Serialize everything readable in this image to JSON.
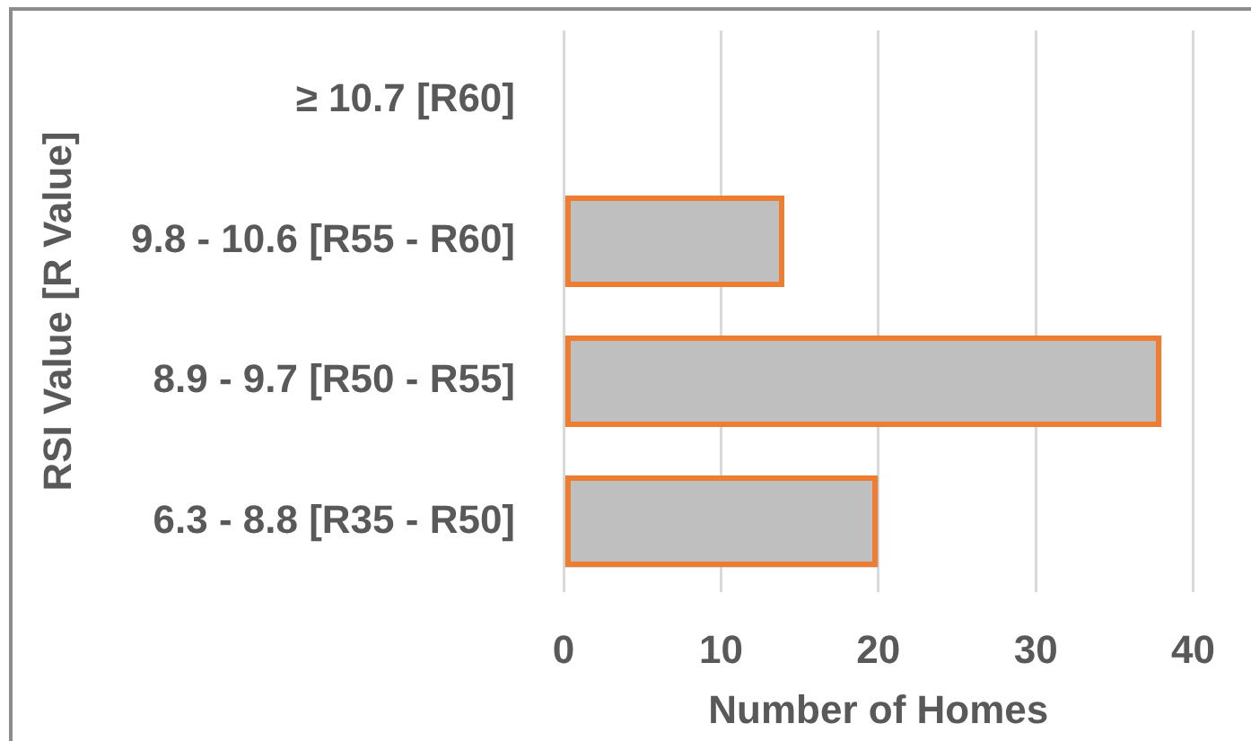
{
  "chart_data": {
    "type": "bar",
    "orientation": "horizontal",
    "xlabel": "Number of Homes",
    "ylabel": "RSI Value [R Value]",
    "categories": [
      "≥ 10.7 [R60]",
      "9.8 - 10.6 [R55 - R60]",
      "8.9 - 9.7 [R50 - R55]",
      "6.3 - 8.8 [R35 - R50]"
    ],
    "values": [
      0,
      14,
      38,
      20
    ],
    "color": "#bfbfbf",
    "xlim": [
      0,
      40
    ],
    "xticks": [
      0,
      10,
      20,
      30,
      40
    ],
    "grid": "x"
  }
}
